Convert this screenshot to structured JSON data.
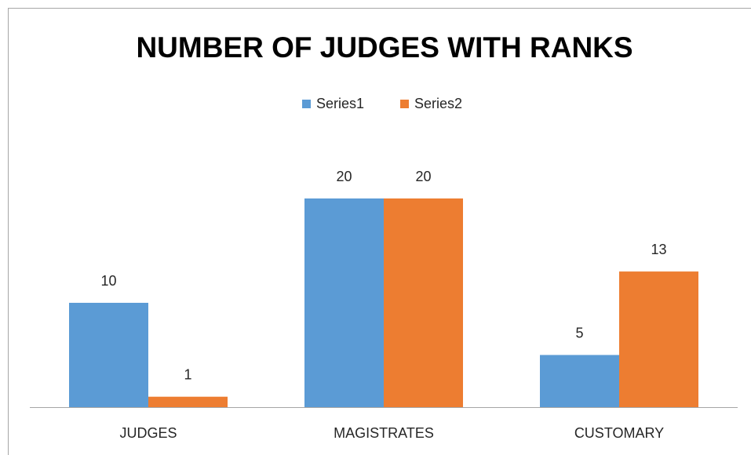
{
  "chart_data": {
    "type": "bar",
    "title": "NUMBER OF JUDGES WITH RANKS",
    "categories": [
      "JUDGES",
      "MAGISTRATES",
      "CUSTOMARY"
    ],
    "series": [
      {
        "name": "Series1",
        "color": "#5b9bd5",
        "values": [
          10,
          20,
          5
        ]
      },
      {
        "name": "Series2",
        "color": "#ed7d31",
        "values": [
          1,
          20,
          13
        ]
      }
    ],
    "ylim": [
      0,
      25
    ],
    "legend": "top"
  }
}
